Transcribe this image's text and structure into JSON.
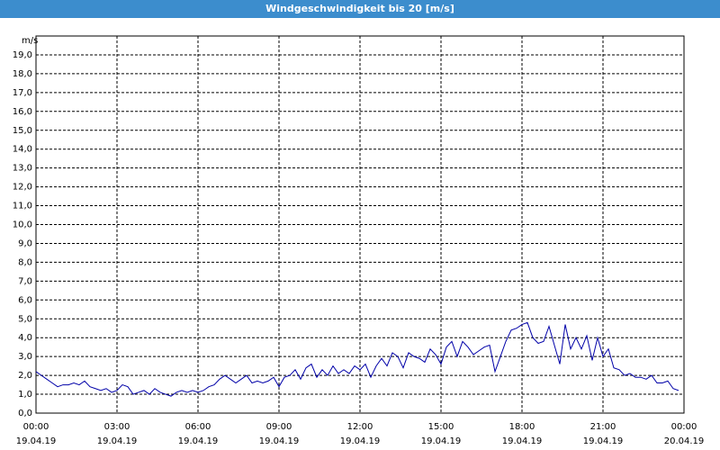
{
  "chart_data": {
    "type": "line",
    "title": "Windgeschwindigkeit bis 20 [m/s]",
    "y_label": "m/s",
    "x": [
      0,
      0.2,
      0.4,
      0.6,
      0.8,
      1,
      1.2,
      1.4,
      1.6,
      1.8,
      2,
      2.2,
      2.4,
      2.6,
      2.8,
      3,
      3.2,
      3.4,
      3.6,
      3.8,
      4,
      4.2,
      4.4,
      4.6,
      4.8,
      5,
      5.2,
      5.4,
      5.6,
      5.8,
      6,
      6.2,
      6.4,
      6.6,
      6.8,
      7,
      7.2,
      7.4,
      7.6,
      7.8,
      8,
      8.2,
      8.4,
      8.6,
      8.8,
      9,
      9.2,
      9.4,
      9.6,
      9.8,
      10,
      10.2,
      10.4,
      10.6,
      10.8,
      11,
      11.2,
      11.4,
      11.6,
      11.8,
      12,
      12.2,
      12.4,
      12.6,
      12.8,
      13,
      13.2,
      13.4,
      13.6,
      13.8,
      14,
      14.2,
      14.4,
      14.6,
      14.8,
      15,
      15.2,
      15.4,
      15.6,
      15.8,
      16,
      16.2,
      16.4,
      16.6,
      16.8,
      17,
      17.2,
      17.4,
      17.6,
      17.8,
      18,
      18.2,
      18.4,
      18.6,
      18.8,
      19,
      19.2,
      19.4,
      19.6,
      19.8,
      20,
      20.2,
      20.4,
      20.6,
      20.8,
      21,
      21.2,
      21.4,
      21.6,
      21.8,
      22,
      22.2,
      22.4,
      22.6,
      22.8,
      23,
      23.2,
      23.4,
      23.6,
      23.8
    ],
    "series": [
      {
        "color": "#0000a8",
        "values": [
          2.2,
          2.0,
          1.8,
          1.6,
          1.4,
          1.5,
          1.5,
          1.6,
          1.5,
          1.7,
          1.4,
          1.3,
          1.2,
          1.3,
          1.1,
          1.2,
          1.5,
          1.4,
          1.0,
          1.1,
          1.2,
          1.0,
          1.3,
          1.1,
          1.0,
          0.9,
          1.1,
          1.2,
          1.1,
          1.2,
          1.1,
          1.2,
          1.4,
          1.5,
          1.8,
          2.0,
          1.8,
          1.6,
          1.8,
          2.0,
          1.6,
          1.7,
          1.6,
          1.7,
          1.9,
          1.4,
          1.9,
          2.0,
          2.3,
          1.8,
          2.4,
          2.6,
          1.9,
          2.3,
          2.0,
          2.5,
          2.1,
          2.3,
          2.1,
          2.5,
          2.3,
          2.6,
          1.9,
          2.5,
          2.9,
          2.5,
          3.2,
          3.0,
          2.4,
          3.2,
          3.0,
          2.9,
          2.7,
          3.4,
          3.1,
          2.6,
          3.5,
          3.8,
          3.0,
          3.8,
          3.5,
          3.1,
          3.3,
          3.5,
          3.6,
          2.2,
          3.0,
          3.8,
          4.4,
          4.5,
          4.7,
          4.8,
          4.0,
          3.7,
          3.8,
          4.6,
          3.6,
          2.6,
          4.7,
          3.4,
          4.0,
          3.4,
          4.1,
          2.8,
          4.0,
          3.0,
          3.4,
          2.4,
          2.3,
          2.0,
          2.1,
          1.9,
          1.9,
          1.8,
          2.0,
          1.6,
          1.6,
          1.7,
          1.3,
          1.2
        ]
      }
    ],
    "xlim": [
      0,
      24
    ],
    "xticks": [
      {
        "value": 0,
        "label": "00:00"
      },
      {
        "value": 3,
        "label": "03:00"
      },
      {
        "value": 6,
        "label": "06:00"
      },
      {
        "value": 9,
        "label": "09:00"
      },
      {
        "value": 12,
        "label": "12:00"
      },
      {
        "value": 15,
        "label": "15:00"
      },
      {
        "value": 18,
        "label": "18:00"
      },
      {
        "value": 21,
        "label": "21:00"
      },
      {
        "value": 24,
        "label": "00:00"
      }
    ],
    "xtick_dates": [
      "19.04.19",
      "19.04.19",
      "19.04.19",
      "19.04.19",
      "19.04.19",
      "19.04.19",
      "19.04.19",
      "19.04.19",
      "20.04.19"
    ],
    "ylim": [
      0,
      20
    ],
    "yticks": [
      {
        "value": 0,
        "label": "0,0"
      },
      {
        "value": 1,
        "label": "1,0"
      },
      {
        "value": 2,
        "label": "2,0"
      },
      {
        "value": 3,
        "label": "3,0"
      },
      {
        "value": 4,
        "label": "4,0"
      },
      {
        "value": 5,
        "label": "5,0"
      },
      {
        "value": 6,
        "label": "6,0"
      },
      {
        "value": 7,
        "label": "7,0"
      },
      {
        "value": 8,
        "label": "8,0"
      },
      {
        "value": 9,
        "label": "9,0"
      },
      {
        "value": 10,
        "label": "10,0"
      },
      {
        "value": 11,
        "label": "11,0"
      },
      {
        "value": 12,
        "label": "12,0"
      },
      {
        "value": 13,
        "label": "13,0"
      },
      {
        "value": 14,
        "label": "14,0"
      },
      {
        "value": 15,
        "label": "15,0"
      },
      {
        "value": 16,
        "label": "16,0"
      },
      {
        "value": 17,
        "label": "17,0"
      },
      {
        "value": 18,
        "label": "18,0"
      },
      {
        "value": 19,
        "label": "19,0"
      }
    ],
    "grid": true
  }
}
